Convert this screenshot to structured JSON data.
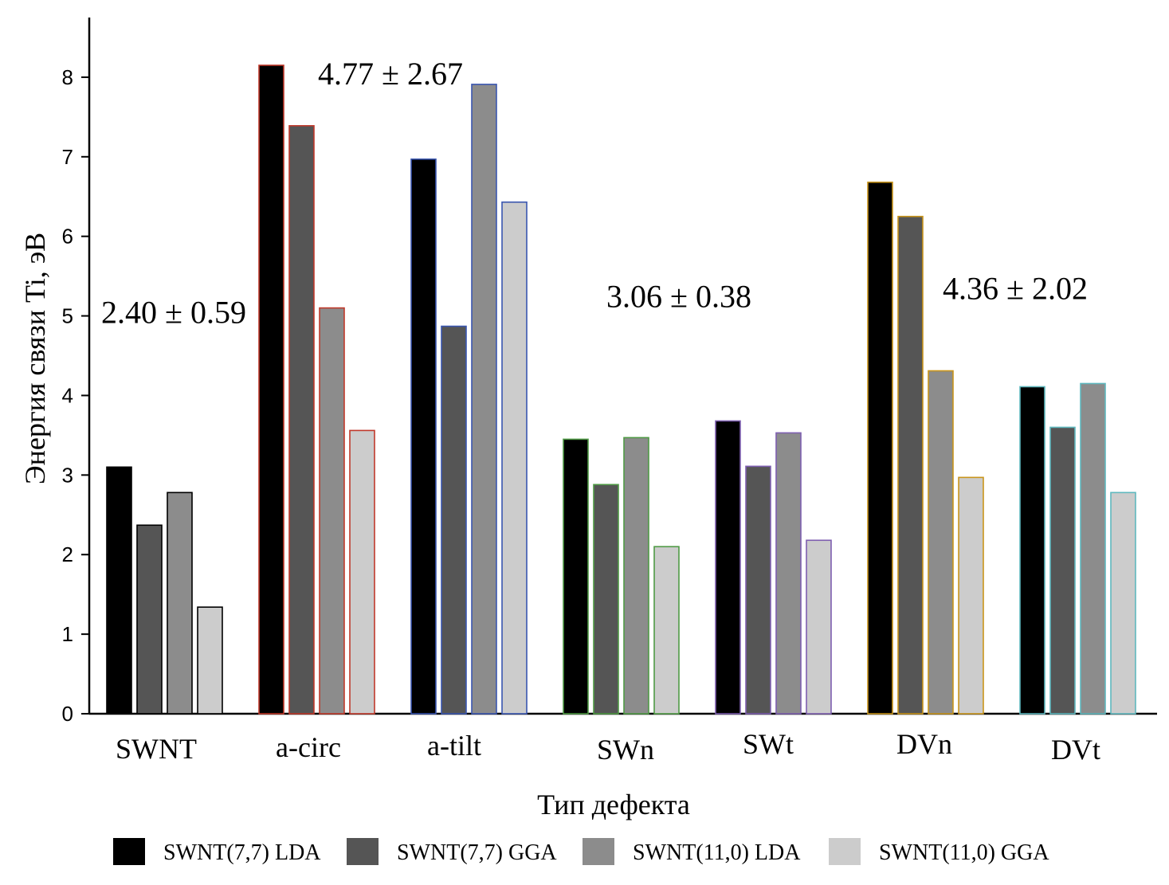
{
  "chart_data": {
    "type": "bar",
    "title": "",
    "xlabel": "Тип дефекта",
    "ylabel": "Энергия связи Ti, эВ",
    "ylim": [
      0,
      8.75
    ],
    "yticks": [
      0,
      1,
      2,
      3,
      4,
      5,
      6,
      7,
      8
    ],
    "grid": false,
    "legend_position": "bottom",
    "categories": [
      "SWNT",
      "a-circ",
      "a-tilt",
      "SWn",
      "SWt",
      "DVn",
      "DVt"
    ],
    "category_outline_colors": [
      "#000000",
      "#c0392b",
      "#3a56b0",
      "#4f9a45",
      "#7e5fb0",
      "#c9951c",
      "#5fb8be"
    ],
    "series": [
      {
        "name": "SWNT(7,7) LDA",
        "color": "#000000",
        "values": [
          3.1,
          8.15,
          6.97,
          3.45,
          3.68,
          6.68,
          4.11
        ]
      },
      {
        "name": "SWNT(7,7) GGA",
        "color": "#555555",
        "values": [
          2.37,
          7.39,
          4.87,
          2.88,
          3.11,
          6.25,
          3.6
        ]
      },
      {
        "name": "SWNT(11,0) LDA",
        "color": "#8c8c8c",
        "values": [
          2.78,
          5.1,
          7.91,
          3.47,
          3.53,
          4.31,
          4.15
        ]
      },
      {
        "name": "SWNT(11,0) GGA",
        "color": "#cccccc",
        "values": [
          1.34,
          3.56,
          6.43,
          2.1,
          2.18,
          2.97,
          2.78
        ]
      }
    ],
    "annotations": [
      {
        "text": "2.40 ± 0.59",
        "x_category": "SWNT",
        "y": 5.05
      },
      {
        "text": "4.77 ± 2.67",
        "x_category": "a-circ",
        "y": 8.05
      },
      {
        "text": "3.06 ± 0.38",
        "x_category": "SWn",
        "y": 5.25
      },
      {
        "text": "4.36 ± 2.02",
        "x_category": "DVn",
        "y": 5.35
      }
    ]
  }
}
